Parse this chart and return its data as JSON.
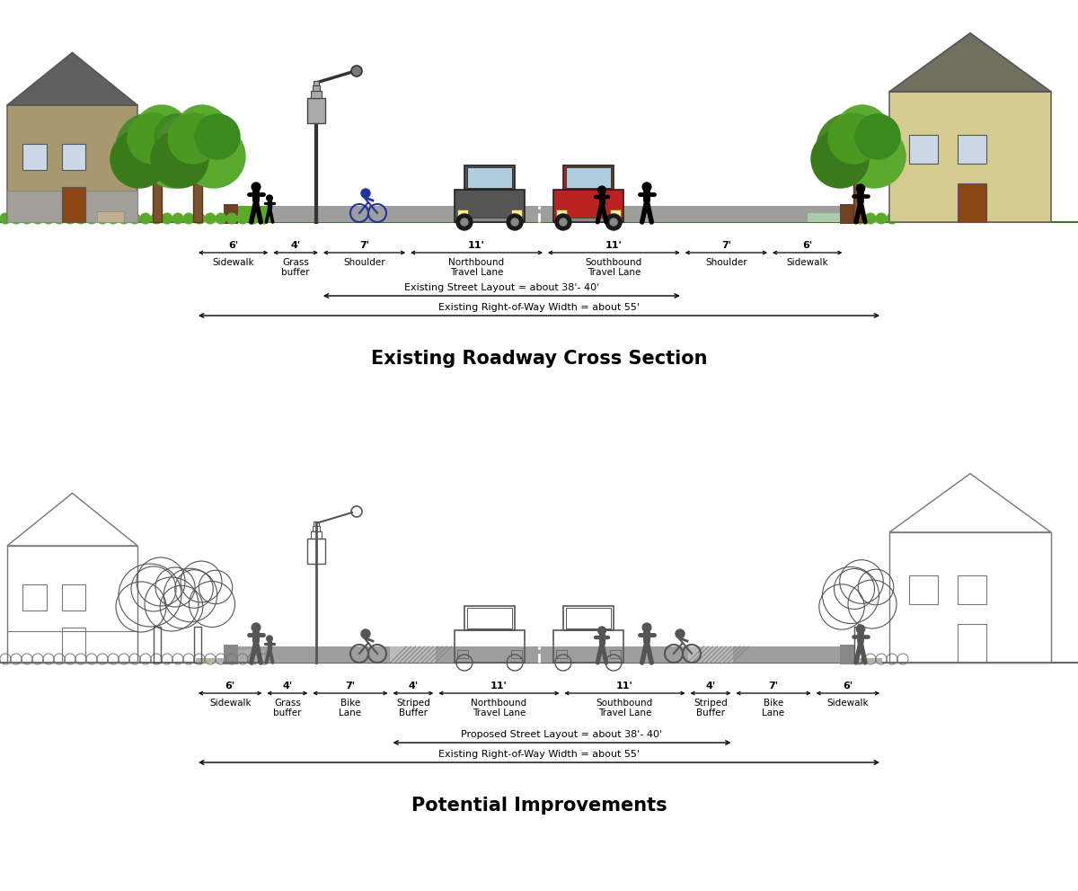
{
  "title_top": "Existing Roadway Cross Section",
  "title_bottom": "Potential Improvements",
  "top_dims": [
    "6'",
    "4'",
    "7'",
    "11'",
    "11'",
    "7'",
    "6'"
  ],
  "top_names": [
    "Sidewalk",
    "Grass\nbuffer",
    "Shoulder",
    "Northbound\nTravel Lane",
    "Southbound\nTravel Lane",
    "Shoulder",
    "Sidewalk"
  ],
  "bot_dims": [
    "6'",
    "4'",
    "7'",
    "4'",
    "11'",
    "11'",
    "4'",
    "7'",
    "6'"
  ],
  "bot_names": [
    "Sidewalk",
    "Grass\nbuffer",
    "Bike\nLane",
    "Striped\nBuffer",
    "Northbound\nTravel Lane",
    "Southbound\nTravel Lane",
    "Striped\nBuffer",
    "Bike\nLane",
    "Sidewalk"
  ],
  "top_arrow1": "Existing Street Layout = about 38'- 40'",
  "top_arrow2": "Existing Right-of-Way Width = about 55'",
  "bot_arrow1": "Proposed Street Layout = about 38'- 40'",
  "bot_arrow2": "Existing Right-of-Way Width = about 55'",
  "bg_color": "#ffffff"
}
